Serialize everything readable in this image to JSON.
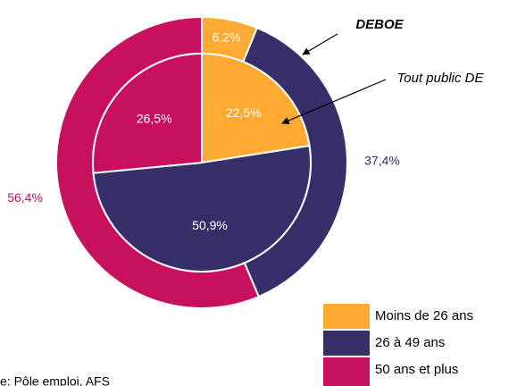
{
  "chart_data": {
    "type": "nested_pie",
    "categories": [
      "Moins de 26 ans",
      "26 à 49 ans",
      "50 ans et plus"
    ],
    "colors": [
      "#FFAA33",
      "#35306A",
      "#C8105E"
    ],
    "series": [
      {
        "name": "Tout public DE",
        "values": [
          22.5,
          50.9,
          26.5
        ],
        "value_labels": [
          "22,5%",
          "50,9%",
          "26,5%"
        ]
      },
      {
        "name": "DEBOE",
        "values": [
          6.2,
          37.4,
          56.4
        ],
        "value_labels": [
          "6,2%",
          "37,4%",
          "56,4%"
        ]
      }
    ],
    "source": "e: Pôle emploi, AFS"
  }
}
